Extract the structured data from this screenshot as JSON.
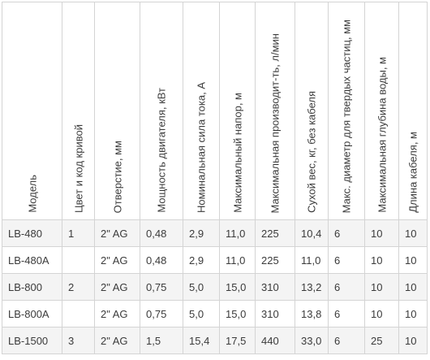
{
  "table": {
    "headers": [
      "Модель",
      "Цвет и код кривой",
      "Отверстие, мм",
      "Мощность двигателя, кВт",
      "Номинальная сила тока, А",
      "Максимальный напор, м",
      "Максимальная производит-ть, л/мин",
      "Сухой вес, кг, без кабеля",
      "Макс. диаметр для твердых частиц, мм",
      "Максимальная глубина воды, м",
      "Длина кабеля, м"
    ],
    "rows": [
      [
        "LB-480",
        "1",
        "2\" AG",
        "0,48",
        "2,9",
        "11,0",
        "225",
        "10,4",
        "6",
        "10",
        "10"
      ],
      [
        "LB-480A",
        "",
        "2\" AG",
        "0,48",
        "2,9",
        "11,0",
        "225",
        "11,0",
        "6",
        "10",
        "10"
      ],
      [
        "LB-800",
        "2",
        "2\" AG",
        "0,75",
        "5,0",
        "15,0",
        "310",
        "13,2",
        "6",
        "10",
        "10"
      ],
      [
        "LB-800A",
        "",
        "2\" AG",
        "0,75",
        "5,0",
        "15,0",
        "310",
        "13,8",
        "6",
        "10",
        "10"
      ],
      [
        "LB-1500",
        "3",
        "2\" AG",
        "1,5",
        "15,4",
        "17,5",
        "440",
        "33,0",
        "6",
        "25",
        "10"
      ]
    ]
  }
}
